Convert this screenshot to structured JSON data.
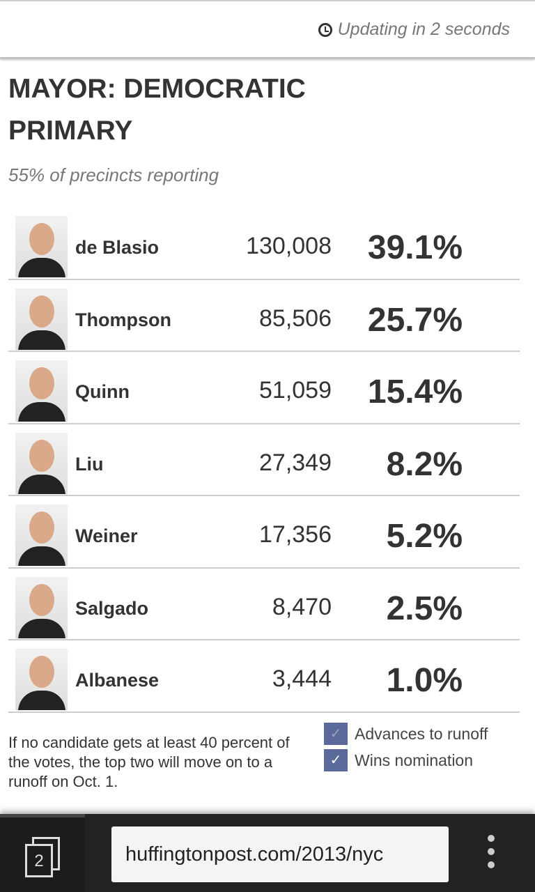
{
  "header": {
    "update_text": "Updating in 2 seconds",
    "icon": "clock-icon"
  },
  "title": "MAYOR: DEMOCRATIC PRIMARY",
  "subtitle": "55% of precincts reporting",
  "candidates": [
    {
      "name": "de Blasio",
      "votes": "130,008",
      "pct": "39.1%"
    },
    {
      "name": "Thompson",
      "votes": "85,506",
      "pct": "25.7%"
    },
    {
      "name": "Quinn",
      "votes": "51,059",
      "pct": "15.4%"
    },
    {
      "name": "Liu",
      "votes": "27,349",
      "pct": "8.2%"
    },
    {
      "name": "Weiner",
      "votes": "17,356",
      "pct": "5.2%"
    },
    {
      "name": "Salgado",
      "votes": "8,470",
      "pct": "2.5%"
    },
    {
      "name": "Albanese",
      "votes": "3,444",
      "pct": "1.0%"
    }
  ],
  "note": "If no candidate gets at least 40 percent of the votes, the top two will move on to a runoff on Oct. 1.",
  "legend": [
    {
      "label": "Advances to runoff",
      "mark": "✓"
    },
    {
      "label": "Wins nomination",
      "mark": "✓"
    }
  ],
  "legend_color": "#5b6a9a",
  "browser": {
    "tab_count": "2",
    "url": "huffingtonpost.com/2013/nyc"
  }
}
